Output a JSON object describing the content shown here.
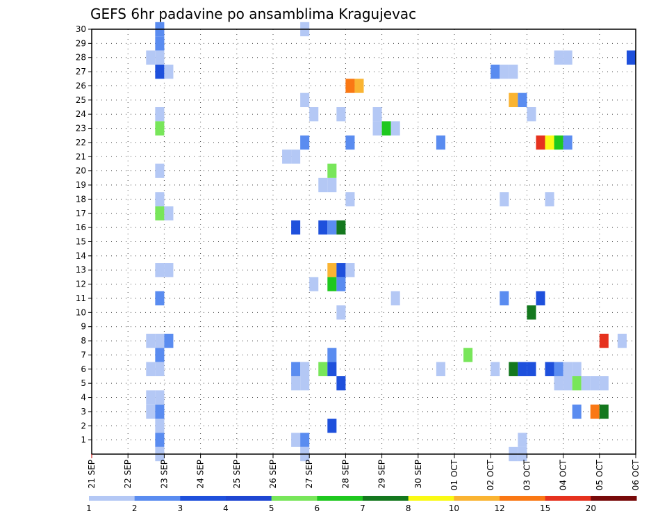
{
  "chart_data": {
    "type": "heatmap",
    "title": "GEFS 6hr padavine po ansamblima Kragujevac",
    "xlabel": "",
    "ylabel": "",
    "y_ticks": [
      "1",
      "2",
      "3",
      "4",
      "5",
      "6",
      "7",
      "8",
      "9",
      "10",
      "11",
      "12",
      "13",
      "14",
      "15",
      "16",
      "17",
      "18",
      "19",
      "20",
      "21",
      "22",
      "23",
      "24",
      "25",
      "26",
      "27",
      "28",
      "29",
      "30"
    ],
    "x_ticks": [
      "21 SEP",
      "22 SEP",
      "23 SEP",
      "24 SEP",
      "25 SEP",
      "26 SEP",
      "27 SEP",
      "28 SEP",
      "29 SEP",
      "30 SEP",
      "01 OCT",
      "02 OCT",
      "03 OCT",
      "04 OCT",
      "05 OCT",
      "06 OCT"
    ],
    "x_range_days": [
      0,
      15
    ],
    "y_range": [
      0,
      30
    ],
    "grid": true,
    "legend_position": "bottom",
    "colorbar": {
      "levels": [
        "1",
        "2",
        "3",
        "4",
        "5",
        "6",
        "7",
        "8",
        "10",
        "12",
        "15",
        "20"
      ],
      "colors": [
        "#b4c8f5",
        "#5a8cf0",
        "#1e50dc",
        "#1e46d2",
        "#78e65a",
        "#1ec81e",
        "#14781e",
        "#fafa14",
        "#fab432",
        "#fa7814",
        "#e6321e",
        "#780a0a"
      ]
    },
    "cells": [
      {
        "day": 1.75,
        "member": 30,
        "value": 2
      },
      {
        "day": 1.75,
        "member": 29,
        "value": 2
      },
      {
        "day": 1.5,
        "member": 28,
        "value": 1
      },
      {
        "day": 1.75,
        "member": 28,
        "value": 1
      },
      {
        "day": 1.75,
        "member": 27,
        "value": 3
      },
      {
        "day": 2.0,
        "member": 27,
        "value": 1
      },
      {
        "day": 1.75,
        "member": 24,
        "value": 1
      },
      {
        "day": 1.75,
        "member": 23,
        "value": 5
      },
      {
        "day": 1.75,
        "member": 20,
        "value": 1
      },
      {
        "day": 1.75,
        "member": 18,
        "value": 1
      },
      {
        "day": 1.75,
        "member": 17,
        "value": 5
      },
      {
        "day": 2.0,
        "member": 17,
        "value": 1
      },
      {
        "day": 1.75,
        "member": 13,
        "value": 1
      },
      {
        "day": 2.0,
        "member": 13,
        "value": 1
      },
      {
        "day": 1.75,
        "member": 11,
        "value": 2
      },
      {
        "day": 1.5,
        "member": 8,
        "value": 1
      },
      {
        "day": 1.75,
        "member": 8,
        "value": 1
      },
      {
        "day": 2.0,
        "member": 8,
        "value": 2
      },
      {
        "day": 1.75,
        "member": 7,
        "value": 2
      },
      {
        "day": 1.5,
        "member": 6,
        "value": 1
      },
      {
        "day": 1.75,
        "member": 6,
        "value": 1
      },
      {
        "day": 1.5,
        "member": 4,
        "value": 1
      },
      {
        "day": 1.75,
        "member": 4,
        "value": 1
      },
      {
        "day": 1.5,
        "member": 3,
        "value": 1
      },
      {
        "day": 1.75,
        "member": 3,
        "value": 2
      },
      {
        "day": 1.75,
        "member": 2,
        "value": 1
      },
      {
        "day": 1.75,
        "member": 1,
        "value": 2
      },
      {
        "day": 1.75,
        "member": 0,
        "value": 1
      },
      {
        "day": 5.75,
        "member": 6,
        "value": 1
      },
      {
        "day": 5.25,
        "member": 21,
        "value": 1
      },
      {
        "day": 5.5,
        "member": 21,
        "value": 1
      },
      {
        "day": 5.75,
        "member": 30,
        "value": 1
      },
      {
        "day": 5.75,
        "member": 25,
        "value": 1
      },
      {
        "day": 5.75,
        "member": 22,
        "value": 2
      },
      {
        "day": 5.5,
        "member": 16,
        "value": 3
      },
      {
        "day": 5.5,
        "member": 6,
        "value": 2
      },
      {
        "day": 5.75,
        "member": 6,
        "value": 1
      },
      {
        "day": 5.5,
        "member": 5,
        "value": 1
      },
      {
        "day": 5.75,
        "member": 5,
        "value": 1
      },
      {
        "day": 5.5,
        "member": 1,
        "value": 1
      },
      {
        "day": 5.75,
        "member": 1,
        "value": 2
      },
      {
        "day": 5.75,
        "member": 0,
        "value": 1
      },
      {
        "day": 6.0,
        "member": 24,
        "value": 1
      },
      {
        "day": 6.0,
        "member": 12,
        "value": 1
      },
      {
        "day": 6.25,
        "member": 19,
        "value": 1
      },
      {
        "day": 6.5,
        "member": 19,
        "value": 1
      },
      {
        "day": 6.5,
        "member": 20,
        "value": 5
      },
      {
        "day": 6.25,
        "member": 16,
        "value": 3
      },
      {
        "day": 6.5,
        "member": 16,
        "value": 2
      },
      {
        "day": 6.75,
        "member": 16,
        "value": 7
      },
      {
        "day": 6.5,
        "member": 13,
        "value": 10
      },
      {
        "day": 6.75,
        "member": 13,
        "value": 3
      },
      {
        "day": 7.0,
        "member": 13,
        "value": 1
      },
      {
        "day": 6.5,
        "member": 12,
        "value": 6
      },
      {
        "day": 6.75,
        "member": 12,
        "value": 2
      },
      {
        "day": 6.75,
        "member": 10,
        "value": 1
      },
      {
        "day": 6.5,
        "member": 7,
        "value": 2
      },
      {
        "day": 6.25,
        "member": 6,
        "value": 5
      },
      {
        "day": 6.5,
        "member": 6,
        "value": 3
      },
      {
        "day": 6.75,
        "member": 5,
        "value": 3
      },
      {
        "day": 6.5,
        "member": 2,
        "value": 3
      },
      {
        "day": 6.75,
        "member": 24,
        "value": 1
      },
      {
        "day": 7.0,
        "member": 26,
        "value": 12
      },
      {
        "day": 7.25,
        "member": 26,
        "value": 10
      },
      {
        "day": 7.0,
        "member": 22,
        "value": 2
      },
      {
        "day": 7.0,
        "member": 18,
        "value": 1
      },
      {
        "day": 7.75,
        "member": 24,
        "value": 1
      },
      {
        "day": 7.75,
        "member": 23,
        "value": 1
      },
      {
        "day": 8.0,
        "member": 23,
        "value": 6
      },
      {
        "day": 8.25,
        "member": 23,
        "value": 1
      },
      {
        "day": 8.25,
        "member": 11,
        "value": 1
      },
      {
        "day": 9.5,
        "member": 22,
        "value": 2
      },
      {
        "day": 9.5,
        "member": 6,
        "value": 1
      },
      {
        "day": 10.25,
        "member": 7,
        "value": 5
      },
      {
        "day": 11.0,
        "member": 6,
        "value": 1
      },
      {
        "day": 11.0,
        "member": 27,
        "value": 2
      },
      {
        "day": 11.25,
        "member": 27,
        "value": 1
      },
      {
        "day": 11.5,
        "member": 27,
        "value": 1
      },
      {
        "day": 11.25,
        "member": 18,
        "value": 1
      },
      {
        "day": 11.25,
        "member": 11,
        "value": 2
      },
      {
        "day": 11.5,
        "member": 25,
        "value": 10
      },
      {
        "day": 11.75,
        "member": 25,
        "value": 2
      },
      {
        "day": 11.5,
        "member": 6,
        "value": 7
      },
      {
        "day": 11.75,
        "member": 6,
        "value": 3
      },
      {
        "day": 12.0,
        "member": 6,
        "value": 3
      },
      {
        "day": 12.0,
        "member": 24,
        "value": 1
      },
      {
        "day": 12.0,
        "member": 10,
        "value": 7
      },
      {
        "day": 11.75,
        "member": 1,
        "value": 1
      },
      {
        "day": 11.5,
        "member": 0,
        "value": 1
      },
      {
        "day": 11.75,
        "member": 0,
        "value": 1
      },
      {
        "day": 12.25,
        "member": 11,
        "value": 3
      },
      {
        "day": 12.25,
        "member": 22,
        "value": 15
      },
      {
        "day": 12.5,
        "member": 22,
        "value": 8
      },
      {
        "day": 12.75,
        "member": 22,
        "value": 6
      },
      {
        "day": 13.0,
        "member": 22,
        "value": 2
      },
      {
        "day": 12.5,
        "member": 18,
        "value": 1
      },
      {
        "day": 12.5,
        "member": 6,
        "value": 3
      },
      {
        "day": 12.75,
        "member": 6,
        "value": 2
      },
      {
        "day": 13.0,
        "member": 6,
        "value": 1
      },
      {
        "day": 13.25,
        "member": 6,
        "value": 1
      },
      {
        "day": 12.75,
        "member": 5,
        "value": 1
      },
      {
        "day": 13.0,
        "member": 5,
        "value": 1
      },
      {
        "day": 13.25,
        "member": 5,
        "value": 5
      },
      {
        "day": 13.5,
        "member": 5,
        "value": 1
      },
      {
        "day": 12.75,
        "member": 28,
        "value": 1
      },
      {
        "day": 13.0,
        "member": 28,
        "value": 1
      },
      {
        "day": 13.25,
        "member": 3,
        "value": 2
      },
      {
        "day": 13.75,
        "member": 5,
        "value": 1
      },
      {
        "day": 14.0,
        "member": 5,
        "value": 1
      },
      {
        "day": 13.75,
        "member": 3,
        "value": 12
      },
      {
        "day": 14.0,
        "member": 3,
        "value": 7
      },
      {
        "day": 14.0,
        "member": 8,
        "value": 15
      },
      {
        "day": 14.5,
        "member": 8,
        "value": 1
      },
      {
        "day": 14.75,
        "member": 28,
        "value": 3
      }
    ]
  }
}
